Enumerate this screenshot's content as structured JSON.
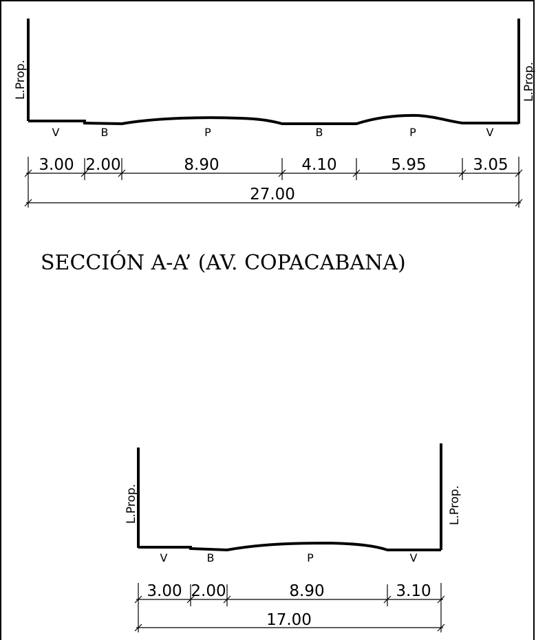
{
  "section_a": {
    "prop_left": "L.Prop.",
    "prop_right": "L.Prop.",
    "zones": [
      "V",
      "B",
      "P",
      "B",
      "P",
      "V"
    ],
    "dims": [
      "3.00",
      "2.00",
      "8.90",
      "4.10",
      "5.95",
      "3.05"
    ],
    "total": "27.00",
    "title": "SECCIÓN A-A’ (AV. COPACABANA)"
  },
  "section_b": {
    "prop_left": "L.Prop.",
    "prop_right": "L.Prop.",
    "zones": [
      "V",
      "B",
      "P",
      "V"
    ],
    "dims": [
      "3.00",
      "2.00",
      "8.90",
      "3.10"
    ],
    "total": "17.00"
  }
}
